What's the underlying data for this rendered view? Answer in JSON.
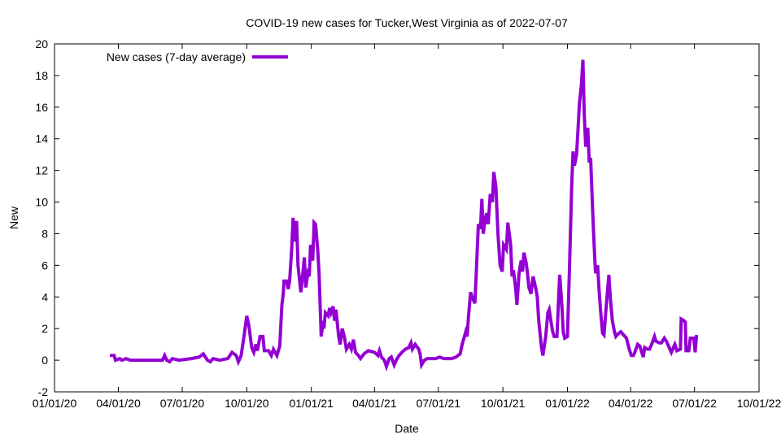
{
  "chart_data": {
    "type": "line",
    "title": "COVID-19 new cases for Tucker,West Virginia as of 2022-07-07",
    "xlabel": "Date",
    "ylabel": "New",
    "ylim": [
      -2,
      20
    ],
    "yticks": [
      -2,
      0,
      2,
      4,
      6,
      8,
      10,
      12,
      14,
      16,
      18,
      20
    ],
    "x_unit": "days since 2020-01-01",
    "xlim": [
      0,
      1004
    ],
    "xticks": [
      {
        "day": 0,
        "label": "01/01/20"
      },
      {
        "day": 91,
        "label": "04/01/20"
      },
      {
        "day": 182,
        "label": "07/01/20"
      },
      {
        "day": 274,
        "label": "10/01/20"
      },
      {
        "day": 366,
        "label": "01/01/21"
      },
      {
        "day": 456,
        "label": "04/01/21"
      },
      {
        "day": 547,
        "label": "07/01/21"
      },
      {
        "day": 639,
        "label": "10/01/21"
      },
      {
        "day": 731,
        "label": "01/01/22"
      },
      {
        "day": 821,
        "label": "04/01/22"
      },
      {
        "day": 912,
        "label": "07/01/22"
      },
      {
        "day": 1004,
        "label": "10/01/22"
      }
    ],
    "grid": false,
    "legend_position": "top-left",
    "series": [
      {
        "name": "New cases (7-day average)",
        "color": "#9400d3",
        "points": [
          [
            79,
            0.3
          ],
          [
            85,
            0.3
          ],
          [
            87,
            0
          ],
          [
            93,
            0.1
          ],
          [
            96,
            0
          ],
          [
            102,
            0.1
          ],
          [
            108,
            0
          ],
          [
            154,
            0
          ],
          [
            157,
            0.3
          ],
          [
            160,
            0
          ],
          [
            164,
            -0.1
          ],
          [
            168,
            0.1
          ],
          [
            177,
            0
          ],
          [
            195,
            0.1
          ],
          [
            206,
            0.2
          ],
          [
            212,
            0.4
          ],
          [
            218,
            0
          ],
          [
            222,
            -0.1
          ],
          [
            226,
            0.1
          ],
          [
            235,
            0
          ],
          [
            247,
            0.1
          ],
          [
            253,
            0.5
          ],
          [
            259,
            0.3
          ],
          [
            262,
            -0.1
          ],
          [
            266,
            0.3
          ],
          [
            270,
            1.5
          ],
          [
            274,
            2.8
          ],
          [
            277,
            2.2
          ],
          [
            281,
            0.8
          ],
          [
            284,
            0.5
          ],
          [
            287,
            1.0
          ],
          [
            289,
            0.6
          ],
          [
            293,
            1.5
          ],
          [
            297,
            1.5
          ],
          [
            299,
            0.6
          ],
          [
            305,
            0.6
          ],
          [
            309,
            0.3
          ],
          [
            312,
            0.7
          ],
          [
            317,
            0.3
          ],
          [
            321,
            0.9
          ],
          [
            324,
            3.5
          ],
          [
            326,
            4.2
          ],
          [
            327,
            5.0
          ],
          [
            331,
            5.0
          ],
          [
            333,
            4.5
          ],
          [
            335,
            5.0
          ],
          [
            338,
            7.0
          ],
          [
            340,
            9.0
          ],
          [
            342,
            7.5
          ],
          [
            345,
            8.8
          ],
          [
            347,
            6.0
          ],
          [
            351,
            4.3
          ],
          [
            354,
            5.5
          ],
          [
            356,
            6.5
          ],
          [
            358,
            4.6
          ],
          [
            361,
            5.5
          ],
          [
            363,
            5.3
          ],
          [
            365,
            7.3
          ],
          [
            368,
            6.3
          ],
          [
            370,
            8.7
          ],
          [
            372,
            8.6
          ],
          [
            375,
            7.0
          ],
          [
            377,
            5.5
          ],
          [
            380,
            1.5
          ],
          [
            383,
            2.5
          ],
          [
            384,
            2.0
          ],
          [
            386,
            3.0
          ],
          [
            390,
            2.8
          ],
          [
            392,
            3.3
          ],
          [
            394,
            3.0
          ],
          [
            397,
            3.4
          ],
          [
            399,
            2.5
          ],
          [
            401,
            3.2
          ],
          [
            405,
            1.5
          ],
          [
            407,
            1.0
          ],
          [
            410,
            2.0
          ],
          [
            413,
            1.5
          ],
          [
            416,
            0.7
          ],
          [
            420,
            1.0
          ],
          [
            423,
            0.7
          ],
          [
            426,
            1.3
          ],
          [
            429,
            0.5
          ],
          [
            433,
            0.3
          ],
          [
            436,
            0.1
          ],
          [
            441,
            0.4
          ],
          [
            447,
            0.6
          ],
          [
            456,
            0.5
          ],
          [
            461,
            0.3
          ],
          [
            463,
            0.6
          ],
          [
            466,
            0.2
          ],
          [
            470,
            0
          ],
          [
            473,
            -0.4
          ],
          [
            477,
            0.1
          ],
          [
            480,
            0.2
          ],
          [
            484,
            -0.3
          ],
          [
            487,
            0
          ],
          [
            491,
            0.3
          ],
          [
            495,
            0.5
          ],
          [
            500,
            0.7
          ],
          [
            505,
            0.8
          ],
          [
            508,
            1.1
          ],
          [
            510,
            0.7
          ],
          [
            514,
            1.0
          ],
          [
            519,
            0.7
          ],
          [
            521,
            0.4
          ],
          [
            523,
            -0.3
          ],
          [
            527,
            0
          ],
          [
            531,
            0.1
          ],
          [
            543,
            0.1
          ],
          [
            549,
            0.2
          ],
          [
            555,
            0.1
          ],
          [
            566,
            0.1
          ],
          [
            572,
            0.2
          ],
          [
            578,
            0.4
          ],
          [
            581,
            1.0
          ],
          [
            586,
            1.8
          ],
          [
            588,
            1.5
          ],
          [
            590,
            2.8
          ],
          [
            593,
            4.3
          ],
          [
            595,
            4.0
          ],
          [
            599,
            3.6
          ],
          [
            601,
            5.5
          ],
          [
            604,
            8.6
          ],
          [
            607,
            8.3
          ],
          [
            609,
            10.2
          ],
          [
            611,
            8.0
          ],
          [
            614,
            9.0
          ],
          [
            616,
            9.3
          ],
          [
            618,
            8.6
          ],
          [
            621,
            10.5
          ],
          [
            624,
            10.0
          ],
          [
            626,
            11.9
          ],
          [
            629,
            11.0
          ],
          [
            632,
            8.0
          ],
          [
            635,
            6.0
          ],
          [
            638,
            5.6
          ],
          [
            640,
            7.3
          ],
          [
            644,
            7.0
          ],
          [
            646,
            8.7
          ],
          [
            650,
            7.3
          ],
          [
            652,
            5.3
          ],
          [
            654,
            5.7
          ],
          [
            657,
            4.6
          ],
          [
            659,
            3.5
          ],
          [
            662,
            5.5
          ],
          [
            665,
            6.3
          ],
          [
            667,
            5.6
          ],
          [
            669,
            6.8
          ],
          [
            672,
            6.2
          ],
          [
            674,
            5.5
          ],
          [
            676,
            4.6
          ],
          [
            679,
            4.2
          ],
          [
            682,
            5.3
          ],
          [
            686,
            4.5
          ],
          [
            688,
            4.0
          ],
          [
            690,
            2.5
          ],
          [
            694,
            0.8
          ],
          [
            696,
            0.3
          ],
          [
            700,
            1.5
          ],
          [
            703,
            3.0
          ],
          [
            705,
            3.2
          ],
          [
            708,
            2.3
          ],
          [
            710,
            1.8
          ],
          [
            712,
            1.5
          ],
          [
            716,
            1.5
          ],
          [
            718,
            3.5
          ],
          [
            720,
            5.4
          ],
          [
            723,
            3.5
          ],
          [
            725,
            1.8
          ],
          [
            727,
            1.4
          ],
          [
            731,
            1.5
          ],
          [
            734,
            6.0
          ],
          [
            737,
            11.0
          ],
          [
            739,
            13.2
          ],
          [
            741,
            12.3
          ],
          [
            744,
            13.0
          ],
          [
            746,
            14.6
          ],
          [
            748,
            16.2
          ],
          [
            751,
            17.5
          ],
          [
            753,
            19.0
          ],
          [
            755,
            15.5
          ],
          [
            757,
            13.5
          ],
          [
            760,
            14.7
          ],
          [
            762,
            12.5
          ],
          [
            764,
            12.8
          ],
          [
            767,
            9.3
          ],
          [
            769,
            7.3
          ],
          [
            771,
            5.5
          ],
          [
            774,
            6.0
          ],
          [
            776,
            4.5
          ],
          [
            778,
            3.2
          ],
          [
            781,
            1.7
          ],
          [
            783,
            1.6
          ],
          [
            787,
            3.8
          ],
          [
            790,
            5.4
          ],
          [
            792,
            4.0
          ],
          [
            795,
            2.5
          ],
          [
            798,
            1.8
          ],
          [
            800,
            1.5
          ],
          [
            804,
            1.7
          ],
          [
            807,
            1.8
          ],
          [
            811,
            1.6
          ],
          [
            815,
            1.4
          ],
          [
            819,
            0.7
          ],
          [
            822,
            0.3
          ],
          [
            825,
            0.3
          ],
          [
            827,
            0.5
          ],
          [
            831,
            1.0
          ],
          [
            834,
            0.9
          ],
          [
            839,
            0.2
          ],
          [
            841,
            0.8
          ],
          [
            845,
            0.7
          ],
          [
            848,
            0.7
          ],
          [
            851,
            1.0
          ],
          [
            855,
            1.5
          ],
          [
            857,
            1.2
          ],
          [
            862,
            1.1
          ],
          [
            865,
            1.1
          ],
          [
            869,
            1.4
          ],
          [
            872,
            1.2
          ],
          [
            876,
            0.8
          ],
          [
            879,
            0.5
          ],
          [
            884,
            1.0
          ],
          [
            887,
            0.6
          ],
          [
            892,
            0.7
          ],
          [
            893,
            2.6
          ],
          [
            897,
            2.5
          ],
          [
            899,
            2.4
          ],
          [
            900,
            0.6
          ],
          [
            904,
            0.6
          ],
          [
            906,
            1.4
          ],
          [
            911,
            1.4
          ],
          [
            913,
            0.5
          ],
          [
            915,
            1.6
          ]
        ]
      }
    ]
  }
}
